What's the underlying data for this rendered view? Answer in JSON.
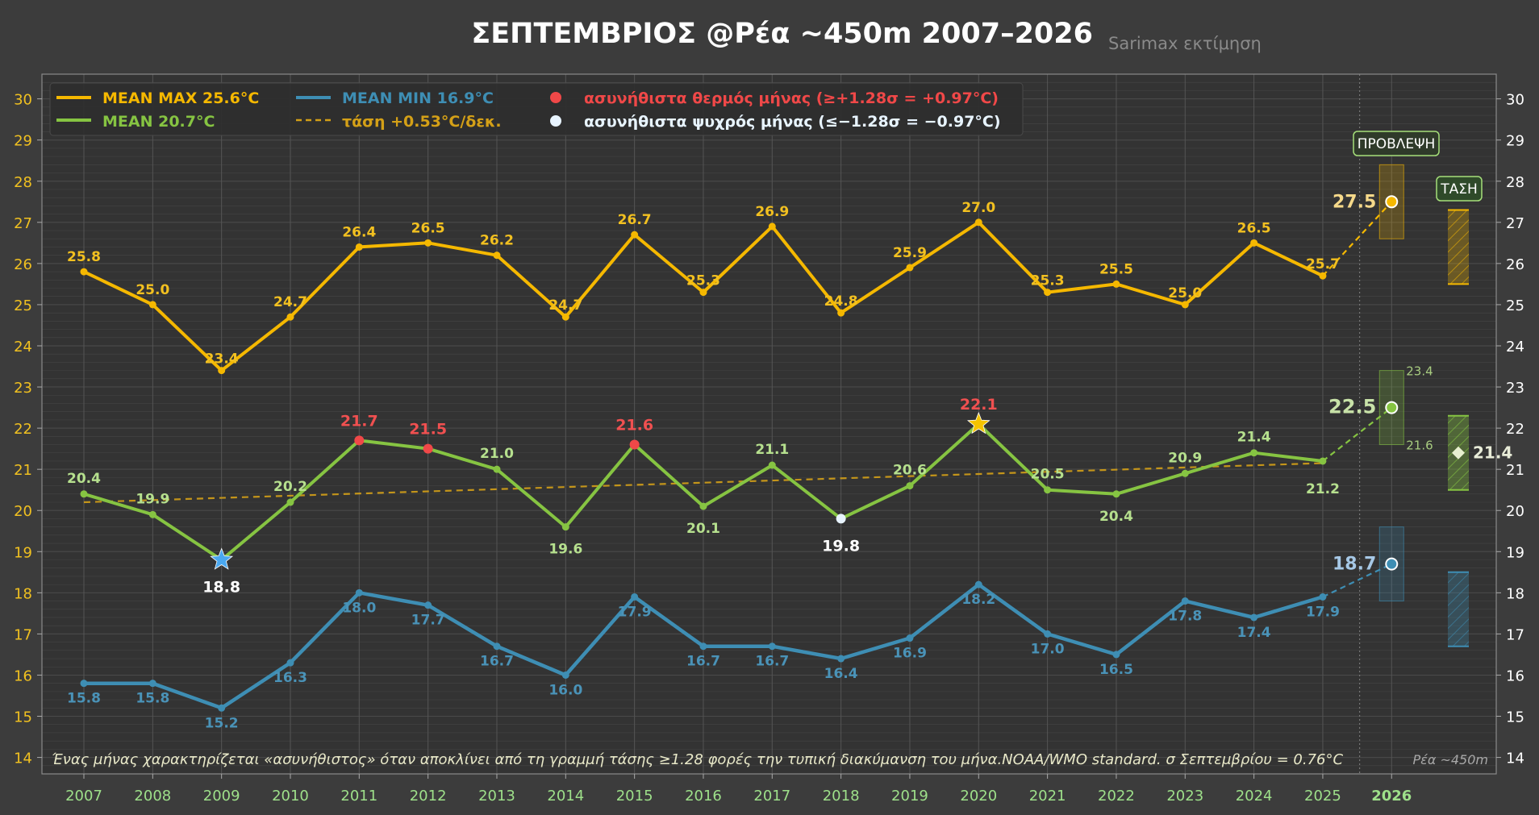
{
  "title": "ΣΕΠΤΕΜΒΡΙΟΣ  @Ρέα ~450m  2007–2026",
  "subtitle": "Sarimax εκτίμηση",
  "legend": {
    "max": "MEAN MAX 25.6°C",
    "min": "MEAN MIN 16.9°C",
    "mean": "MEAN 20.7°C",
    "trend": "τάση +0.53°C/δεκ.",
    "warm": "ασυνήθιστα θερμός μήνας (≥+1.28σ = +0.97°C)",
    "cold": "ασυνήθιστα ψυχρός μήνας (≤−1.28σ = −0.97°C)"
  },
  "forecast_box_label": "ΠΡΟΒΛΕΨΗ",
  "trend_box_label": "ΤΑΣΗ",
  "footnote": "Ένας μήνας χαρακτηρίζεται «ασυνήθιστος» όταν αποκλίνει από τη γραμμή τάσης ≥1.28 φορές την τυπική διακύμανση του μήνα.NOAA/WMO standard.  σ Σεπτεμβρίου = 0.76°C",
  "footnote_right": "Ρέα ~450m",
  "colors": {
    "max": "#f5b800",
    "mean": "#86c442",
    "min": "#3e8eb4",
    "trend": "#d4a017",
    "warm": "#f04848",
    "cold": "#e8f4ff",
    "record_warm_star": "#f5c400",
    "record_cold_star": "#4aa8f0"
  },
  "chart_data": {
    "type": "line",
    "x": [
      "2007",
      "2008",
      "2009",
      "2010",
      "2011",
      "2012",
      "2013",
      "2014",
      "2015",
      "2016",
      "2017",
      "2018",
      "2019",
      "2020",
      "2021",
      "2022",
      "2023",
      "2024",
      "2025"
    ],
    "forecast_x": "2026",
    "ylim": [
      13.6,
      30.6
    ],
    "y_ticks": [
      14,
      15,
      16,
      17,
      18,
      19,
      20,
      21,
      22,
      23,
      24,
      25,
      26,
      27,
      28,
      29,
      30
    ],
    "grid": true,
    "legend_position": "top-left",
    "series": [
      {
        "key": "max",
        "name": "MEAN MAX 25.6°C",
        "values": [
          25.8,
          25.0,
          23.4,
          24.7,
          26.4,
          26.5,
          26.2,
          24.7,
          26.7,
          25.3,
          26.9,
          24.8,
          25.9,
          27.0,
          25.3,
          25.5,
          25.0,
          26.5,
          25.7
        ]
      },
      {
        "key": "mean",
        "name": "MEAN 20.7°C",
        "values": [
          20.4,
          19.9,
          18.8,
          20.2,
          21.7,
          21.5,
          21.0,
          19.6,
          21.6,
          20.1,
          21.1,
          19.8,
          20.6,
          22.1,
          20.5,
          20.4,
          20.9,
          21.4,
          21.2
        ]
      },
      {
        "key": "min",
        "name": "MEAN MIN 16.9°C",
        "values": [
          15.8,
          15.8,
          15.2,
          16.3,
          18.0,
          17.7,
          16.7,
          16.0,
          17.9,
          16.7,
          16.7,
          16.4,
          16.9,
          18.2,
          17.0,
          16.5,
          17.8,
          17.4,
          17.9
        ]
      }
    ],
    "trend": {
      "name": "τάση +0.53°C/δεκ.",
      "start": 20.2,
      "end": 21.15
    },
    "anomalies": {
      "warm": [
        "2011",
        "2012",
        "2015"
      ],
      "cold": [
        "2018"
      ],
      "record_warm": "2020",
      "record_cold": "2009"
    },
    "forecast": {
      "max": {
        "value": 27.5,
        "low": 26.6,
        "high": 28.4
      },
      "mean": {
        "value": 22.5,
        "low": 21.6,
        "high": 23.4,
        "low_label": "21.6",
        "high_label": "23.4"
      },
      "min": {
        "value": 18.7,
        "low": 17.8,
        "high": 19.6
      }
    },
    "trend_projection": {
      "max": {
        "low": 25.5,
        "high": 27.3
      },
      "mean": {
        "value": 21.4,
        "low": 20.5,
        "high": 22.3
      },
      "min": {
        "low": 16.7,
        "high": 18.5
      }
    }
  }
}
